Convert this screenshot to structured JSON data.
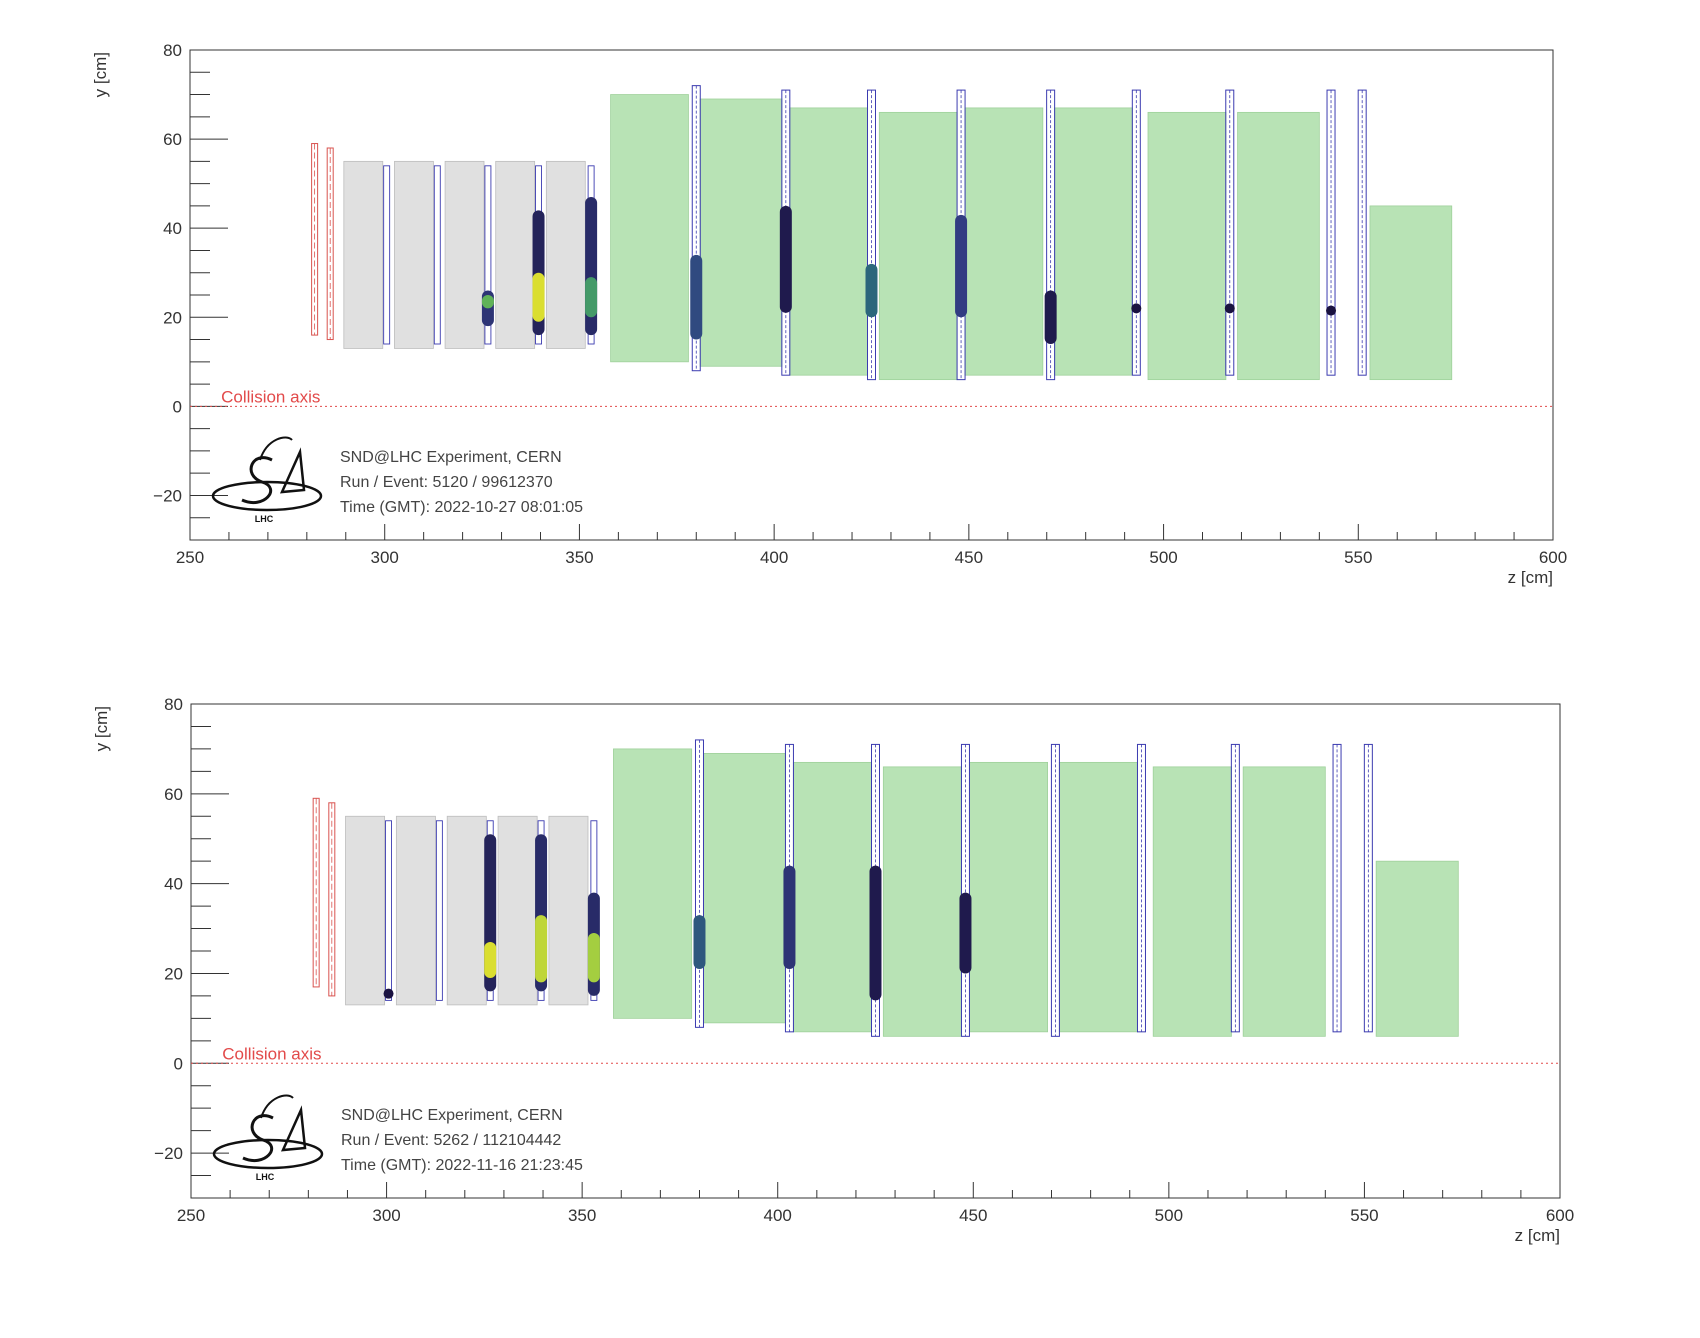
{
  "chart_data": [
    {
      "type": "scatter",
      "xlabel": "z [cm]",
      "ylabel": "y [cm]",
      "xlim": [
        250,
        600
      ],
      "ylim": [
        -30,
        80
      ],
      "xticks": [
        "250",
        "300",
        "350",
        "400",
        "450",
        "500",
        "550",
        "600"
      ],
      "yticks": [
        "80",
        "60",
        "40",
        "20",
        "0",
        "−20"
      ],
      "axis_annotation": "Collision axis",
      "logo_text": "LHC",
      "info": {
        "experiment": "SND@LHC Experiment, CERN",
        "run_event": "Run / Event: 5120 / 99612370",
        "time": "Time (GMT): 2022-10-27 08:01:05"
      },
      "colors": {
        "hcal_block": "#b8e3b5",
        "wall_block": "#e0e0e0",
        "veto_planes": "#d9534f",
        "detector_planes": "#3b3bb0",
        "collision_axis": "#e24a4a"
      },
      "veto_planes": [
        {
          "z": 282,
          "y0": 16,
          "y1": 59
        },
        {
          "z": 286,
          "y0": 15,
          "y1": 58
        }
      ],
      "walls": [
        {
          "z0": 289.5,
          "z1": 299.5,
          "y0": 13,
          "y1": 55
        },
        {
          "z0": 302.5,
          "z1": 312.5,
          "y0": 13,
          "y1": 55
        },
        {
          "z0": 315.5,
          "z1": 325.5,
          "y0": 13,
          "y1": 55
        },
        {
          "z0": 328.5,
          "z1": 338.5,
          "y0": 13,
          "y1": 55
        },
        {
          "z0": 341.5,
          "z1": 351.5,
          "y0": 13,
          "y1": 55
        }
      ],
      "wall_planes": [
        {
          "z": 300.5,
          "y0": 14,
          "y1": 54
        },
        {
          "z": 313.5,
          "y0": 14,
          "y1": 54
        },
        {
          "z": 326.5,
          "y0": 14,
          "y1": 54
        },
        {
          "z": 339.5,
          "y0": 14,
          "y1": 54
        },
        {
          "z": 353,
          "y0": 14,
          "y1": 54
        }
      ],
      "hcal_blocks": [
        {
          "z0": 358,
          "z1": 378,
          "y0": 10,
          "y1": 70
        },
        {
          "z0": 381,
          "z1": 402,
          "y0": 9,
          "y1": 69
        },
        {
          "z0": 404,
          "z1": 424,
          "y0": 7,
          "y1": 67
        },
        {
          "z0": 427,
          "z1": 447,
          "y0": 6,
          "y1": 66
        },
        {
          "z0": 449,
          "z1": 469,
          "y0": 7,
          "y1": 67
        },
        {
          "z0": 472,
          "z1": 492,
          "y0": 7,
          "y1": 67
        },
        {
          "z0": 496,
          "z1": 516,
          "y0": 6,
          "y1": 66
        },
        {
          "z0": 519,
          "z1": 540,
          "y0": 6,
          "y1": 66
        },
        {
          "z0": 553,
          "z1": 574,
          "y0": 6,
          "y1": 45
        }
      ],
      "hcal_planes": [
        {
          "z": 380,
          "y0": 8,
          "y1": 72
        },
        {
          "z": 403,
          "y0": 7,
          "y1": 71
        },
        {
          "z": 425,
          "y0": 6,
          "y1": 71
        },
        {
          "z": 448,
          "y0": 6,
          "y1": 71
        },
        {
          "z": 471,
          "y0": 6,
          "y1": 71
        },
        {
          "z": 493,
          "y0": 7,
          "y1": 71
        },
        {
          "z": 517,
          "y0": 7,
          "y1": 71
        },
        {
          "z": 543,
          "y0": 7,
          "y1": 71
        },
        {
          "z": 551,
          "y0": 7,
          "y1": 71
        }
      ],
      "hits": [
        {
          "z": 326.5,
          "y0": 18,
          "y1": 26,
          "level": 0.2
        },
        {
          "z": 326.5,
          "y0": 22,
          "y1": 25,
          "level": 0.7
        },
        {
          "z": 339.5,
          "y0": 16,
          "y1": 44,
          "level": 0.1
        },
        {
          "z": 339.5,
          "y0": 19,
          "y1": 30,
          "level": 0.95
        },
        {
          "z": 353,
          "y0": 16,
          "y1": 47,
          "level": 0.15
        },
        {
          "z": 353,
          "y0": 20,
          "y1": 29,
          "level": 0.6
        },
        {
          "z": 380,
          "y0": 15,
          "y1": 34,
          "level": 0.3
        },
        {
          "z": 403,
          "y0": 21,
          "y1": 45,
          "level": 0.05
        },
        {
          "z": 425,
          "y0": 20,
          "y1": 32,
          "level": 0.4
        },
        {
          "z": 448,
          "y0": 20,
          "y1": 43,
          "level": 0.25
        },
        {
          "z": 471,
          "y0": 14,
          "y1": 26,
          "level": 0.05
        },
        {
          "z": 493,
          "y0": 22,
          "y1": 22,
          "level": 0.0
        },
        {
          "z": 517,
          "y0": 22,
          "y1": 22,
          "level": 0.0
        },
        {
          "z": 543,
          "y0": 21.5,
          "y1": 21.5,
          "level": 0.0
        }
      ]
    },
    {
      "type": "scatter",
      "xlabel": "z [cm]",
      "ylabel": "y [cm]",
      "xlim": [
        250,
        600
      ],
      "ylim": [
        -30,
        80
      ],
      "xticks": [
        "250",
        "300",
        "350",
        "400",
        "450",
        "500",
        "550",
        "600"
      ],
      "yticks": [
        "80",
        "60",
        "40",
        "20",
        "0",
        "−20"
      ],
      "axis_annotation": "Collision axis",
      "logo_text": "LHC",
      "info": {
        "experiment": "SND@LHC Experiment, CERN",
        "run_event": "Run / Event: 5262 / 112104442",
        "time": "Time (GMT): 2022-11-16 21:23:45"
      },
      "colors": {
        "hcal_block": "#b8e3b5",
        "wall_block": "#e0e0e0",
        "veto_planes": "#d9534f",
        "detector_planes": "#3b3bb0",
        "collision_axis": "#e24a4a"
      },
      "veto_planes": [
        {
          "z": 282,
          "y0": 17,
          "y1": 59
        },
        {
          "z": 286,
          "y0": 15,
          "y1": 58
        }
      ],
      "walls": [
        {
          "z0": 289.5,
          "z1": 299.5,
          "y0": 13,
          "y1": 55
        },
        {
          "z0": 302.5,
          "z1": 312.5,
          "y0": 13,
          "y1": 55
        },
        {
          "z0": 315.5,
          "z1": 325.5,
          "y0": 13,
          "y1": 55
        },
        {
          "z0": 328.5,
          "z1": 338.5,
          "y0": 13,
          "y1": 55
        },
        {
          "z0": 341.5,
          "z1": 351.5,
          "y0": 13,
          "y1": 55
        }
      ],
      "wall_planes": [
        {
          "z": 300.5,
          "y0": 14,
          "y1": 54
        },
        {
          "z": 313.5,
          "y0": 14,
          "y1": 54
        },
        {
          "z": 326.5,
          "y0": 14,
          "y1": 54
        },
        {
          "z": 339.5,
          "y0": 14,
          "y1": 54
        },
        {
          "z": 353,
          "y0": 14,
          "y1": 54
        }
      ],
      "hcal_blocks": [
        {
          "z0": 358,
          "z1": 378,
          "y0": 10,
          "y1": 70
        },
        {
          "z0": 381,
          "z1": 402,
          "y0": 9,
          "y1": 69
        },
        {
          "z0": 404,
          "z1": 424,
          "y0": 7,
          "y1": 67
        },
        {
          "z0": 427,
          "z1": 447,
          "y0": 6,
          "y1": 66
        },
        {
          "z0": 449,
          "z1": 469,
          "y0": 7,
          "y1": 67
        },
        {
          "z0": 472,
          "z1": 492,
          "y0": 7,
          "y1": 67
        },
        {
          "z0": 496,
          "z1": 516,
          "y0": 6,
          "y1": 66
        },
        {
          "z0": 519,
          "z1": 540,
          "y0": 6,
          "y1": 66
        },
        {
          "z0": 553,
          "z1": 574,
          "y0": 6,
          "y1": 45
        }
      ],
      "hcal_planes": [
        {
          "z": 380,
          "y0": 8,
          "y1": 72
        },
        {
          "z": 403,
          "y0": 7,
          "y1": 71
        },
        {
          "z": 425,
          "y0": 6,
          "y1": 71
        },
        {
          "z": 448,
          "y0": 6,
          "y1": 71
        },
        {
          "z": 471,
          "y0": 6,
          "y1": 71
        },
        {
          "z": 493,
          "y0": 7,
          "y1": 71
        },
        {
          "z": 517,
          "y0": 7,
          "y1": 71
        },
        {
          "z": 543,
          "y0": 7,
          "y1": 71
        },
        {
          "z": 551,
          "y0": 7,
          "y1": 71
        }
      ],
      "hits": [
        {
          "z": 300.5,
          "y0": 15.5,
          "y1": 15.5,
          "level": 0.0
        },
        {
          "z": 326.5,
          "y0": 16,
          "y1": 51,
          "level": 0.1
        },
        {
          "z": 326.5,
          "y0": 19,
          "y1": 27,
          "level": 0.95
        },
        {
          "z": 339.5,
          "y0": 16,
          "y1": 51,
          "level": 0.15
        },
        {
          "z": 339.5,
          "y0": 18,
          "y1": 33,
          "level": 0.9
        },
        {
          "z": 353,
          "y0": 15,
          "y1": 38,
          "level": 0.15
        },
        {
          "z": 353,
          "y0": 18,
          "y1": 29,
          "level": 0.85
        },
        {
          "z": 380,
          "y0": 21,
          "y1": 33,
          "level": 0.35
        },
        {
          "z": 403,
          "y0": 21,
          "y1": 44,
          "level": 0.2
        },
        {
          "z": 425,
          "y0": 14,
          "y1": 44,
          "level": 0.05
        },
        {
          "z": 448,
          "y0": 20,
          "y1": 38,
          "level": 0.05
        }
      ]
    }
  ]
}
